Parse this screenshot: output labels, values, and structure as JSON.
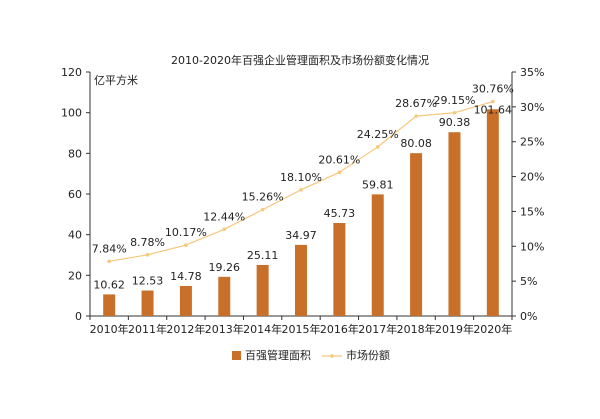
{
  "chart_data": {
    "type": "bar",
    "title": "2010-2020年百强企业管理面积及市场份额变化情况",
    "ylabel": "亿平方米",
    "categories": [
      "2010年",
      "2011年",
      "2012年",
      "2013年",
      "2014年",
      "2015年",
      "2016年",
      "2017年",
      "2018年",
      "2019年",
      "2020年"
    ],
    "ylim": [
      0,
      120
    ],
    "yticks": [
      "0",
      "20",
      "40",
      "60",
      "80",
      "100",
      "120"
    ],
    "y2lim": [
      0,
      35
    ],
    "y2ticks": [
      "0%",
      "5%",
      "10%",
      "15%",
      "20%",
      "25%",
      "30%",
      "35%"
    ],
    "grid": false,
    "legend_position": "bottom",
    "series": [
      {
        "name": "百强管理面积",
        "kind": "bar",
        "axis": "left",
        "color": "#C8702A",
        "values": [
          10.62,
          12.53,
          14.78,
          19.26,
          25.11,
          34.97,
          45.73,
          59.81,
          80.08,
          90.38,
          101.64
        ],
        "labels": [
          "10.62",
          "12.53",
          "14.78",
          "19.26",
          "25.11",
          "34.97",
          "45.73",
          "59.81",
          "80.08",
          "90.38",
          "101.64"
        ]
      },
      {
        "name": "市场份额",
        "kind": "line",
        "axis": "right",
        "color": "#F5C87A",
        "values": [
          7.84,
          8.78,
          10.17,
          12.44,
          15.26,
          18.1,
          20.61,
          24.25,
          28.67,
          29.15,
          30.76
        ],
        "labels": [
          "7.84%",
          "8.78%",
          "10.17%",
          "12.44%",
          "15.26%",
          "18.10%",
          "20.61%",
          "24.25%",
          "28.67%",
          "29.15%",
          "30.76%"
        ]
      }
    ]
  }
}
